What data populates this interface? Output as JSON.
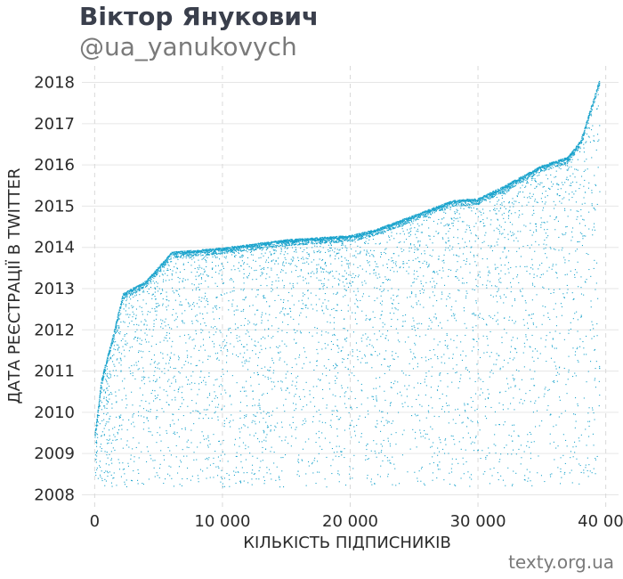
{
  "header": {
    "title": "Віктор Янукович",
    "subtitle": "@ua_yanukovych"
  },
  "footer": {
    "source": "texty.org.ua"
  },
  "colors": {
    "points": "#1aa3cc",
    "grid": "#e6e6e6",
    "grid_dashed": "#d9d9d9"
  },
  "chart_data": {
    "type": "scatter",
    "xlabel": "КІЛЬКІСТЬ ПІДПИСНИКІВ",
    "ylabel": "ДАТА РЕЄСТРАЦІЇ В TWITTER",
    "xlim": [
      -1000,
      41000
    ],
    "ylim": [
      2007.6,
      2018.4
    ],
    "x_ticks": [
      0,
      10000,
      20000,
      30000,
      40000
    ],
    "x_tick_labels": [
      "0",
      "10 000",
      "20 000",
      "30 000",
      "40 000"
    ],
    "y_ticks": [
      2008,
      2009,
      2010,
      2011,
      2012,
      2013,
      2014,
      2015,
      2016,
      2017,
      2018
    ],
    "y_tick_labels": [
      "2008",
      "2009",
      "2010",
      "2011",
      "2012",
      "2013",
      "2014",
      "2015",
      "2016",
      "2017",
      "2018"
    ],
    "grid": true,
    "upper_envelope": [
      {
        "x": 0,
        "y": 2009.5
      },
      {
        "x": 500,
        "y": 2010.8
      },
      {
        "x": 1500,
        "y": 2012.0
      },
      {
        "x": 2200,
        "y": 2012.9
      },
      {
        "x": 4000,
        "y": 2013.2
      },
      {
        "x": 6000,
        "y": 2013.9
      },
      {
        "x": 10000,
        "y": 2014.0
      },
      {
        "x": 15000,
        "y": 2014.2
      },
      {
        "x": 20000,
        "y": 2014.3
      },
      {
        "x": 22000,
        "y": 2014.45
      },
      {
        "x": 25000,
        "y": 2014.8
      },
      {
        "x": 28000,
        "y": 2015.15
      },
      {
        "x": 30000,
        "y": 2015.2
      },
      {
        "x": 32000,
        "y": 2015.5
      },
      {
        "x": 35000,
        "y": 2016.0
      },
      {
        "x": 37000,
        "y": 2016.2
      },
      {
        "x": 38000,
        "y": 2016.6
      },
      {
        "x": 39500,
        "y": 2018.1
      }
    ]
  }
}
